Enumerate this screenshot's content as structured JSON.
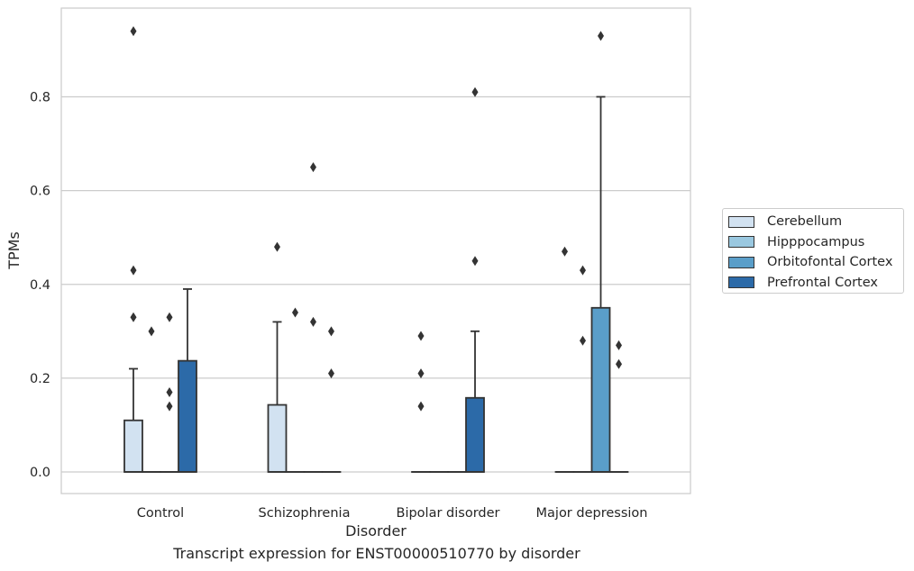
{
  "chart_data": {
    "type": "box",
    "caption": "Transcript expression for ENST00000510770 by disorder",
    "xlabel": "Disorder",
    "ylabel": "TPMs",
    "ylim": [
      -0.045,
      0.99
    ],
    "yticks": [
      0.0,
      0.2,
      0.4,
      0.6,
      0.8
    ],
    "ytick_labels": [
      "0.0",
      "0.2",
      "0.4",
      "0.6",
      "0.8"
    ],
    "grid": "horizontal",
    "legend_position": "right",
    "categories": [
      "Control",
      "Schizophrenia",
      "Bipolar disorder",
      "Major depression"
    ],
    "series": [
      {
        "name": "Cerebellum",
        "color": "#d2e2f1",
        "boxes": [
          {
            "q1": 0.0,
            "median": 0.0,
            "q3": 0.11,
            "whisker_low": 0.0,
            "whisker_high": 0.22,
            "outliers": [
              0.94,
              0.43,
              0.33
            ]
          },
          {
            "q1": 0.0,
            "median": 0.0,
            "q3": 0.143,
            "whisker_low": 0.0,
            "whisker_high": 0.32,
            "outliers": [
              0.48
            ]
          },
          {
            "q1": 0.0,
            "median": 0.0,
            "q3": 0.0,
            "whisker_low": 0.0,
            "whisker_high": 0.0,
            "outliers": [
              0.29,
              0.21,
              0.14
            ]
          },
          {
            "q1": 0.0,
            "median": 0.0,
            "q3": 0.0,
            "whisker_low": 0.0,
            "whisker_high": 0.0,
            "outliers": [
              0.47
            ]
          }
        ]
      },
      {
        "name": "Hipppocampus",
        "color": "#9ac8e0",
        "boxes": [
          {
            "q1": 0.0,
            "median": 0.0,
            "q3": 0.0,
            "whisker_low": 0.0,
            "whisker_high": 0.0,
            "outliers": [
              0.3
            ]
          },
          {
            "q1": 0.0,
            "median": 0.0,
            "q3": 0.0,
            "whisker_low": 0.0,
            "whisker_high": 0.0,
            "outliers": [
              0.34
            ]
          },
          {
            "q1": 0.0,
            "median": 0.0,
            "q3": 0.0,
            "whisker_low": 0.0,
            "whisker_high": 0.0,
            "outliers": []
          },
          {
            "q1": 0.0,
            "median": 0.0,
            "q3": 0.0,
            "whisker_low": 0.0,
            "whisker_high": 0.0,
            "outliers": [
              0.43,
              0.28
            ]
          }
        ]
      },
      {
        "name": "Orbitofontal Cortex",
        "color": "#5a9ec9",
        "boxes": [
          {
            "q1": 0.0,
            "median": 0.0,
            "q3": 0.0,
            "whisker_low": 0.0,
            "whisker_high": 0.0,
            "outliers": [
              0.33,
              0.17,
              0.14
            ]
          },
          {
            "q1": 0.0,
            "median": 0.0,
            "q3": 0.0,
            "whisker_low": 0.0,
            "whisker_high": 0.0,
            "outliers": [
              0.65,
              0.32
            ]
          },
          {
            "q1": 0.0,
            "median": 0.0,
            "q3": 0.0,
            "whisker_low": 0.0,
            "whisker_high": 0.0,
            "outliers": []
          },
          {
            "q1": 0.0,
            "median": 0.0,
            "q3": 0.35,
            "whisker_low": 0.0,
            "whisker_high": 0.8,
            "outliers": [
              0.93
            ]
          }
        ]
      },
      {
        "name": "Prefrontal Cortex",
        "color": "#2c6aa8",
        "boxes": [
          {
            "q1": 0.0,
            "median": 0.0,
            "q3": 0.237,
            "whisker_low": 0.0,
            "whisker_high": 0.39,
            "outliers": []
          },
          {
            "q1": 0.0,
            "median": 0.0,
            "q3": 0.0,
            "whisker_low": 0.0,
            "whisker_high": 0.0,
            "outliers": [
              0.3,
              0.21
            ]
          },
          {
            "q1": 0.0,
            "median": 0.0,
            "q3": 0.158,
            "whisker_low": 0.0,
            "whisker_high": 0.3,
            "outliers": [
              0.81,
              0.45
            ]
          },
          {
            "q1": 0.0,
            "median": 0.0,
            "q3": 0.0,
            "whisker_low": 0.0,
            "whisker_high": 0.0,
            "outliers": [
              0.27,
              0.23
            ]
          }
        ]
      }
    ]
  }
}
